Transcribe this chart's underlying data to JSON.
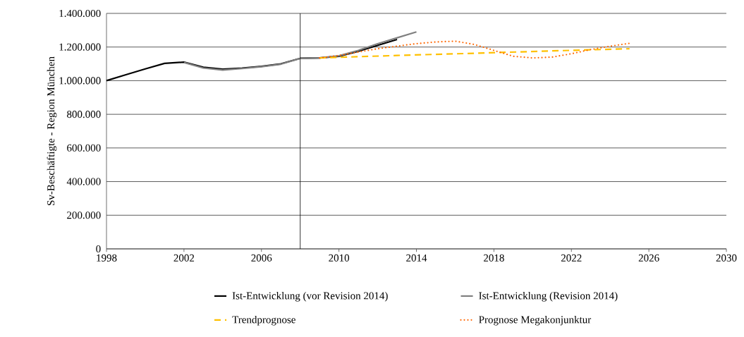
{
  "chart_data": {
    "type": "line",
    "ylabel": "Sv-Beschäftigte - Region München",
    "xlim": [
      1998,
      2030
    ],
    "xticks": [
      1998,
      2002,
      2006,
      2010,
      2014,
      2018,
      2022,
      2026,
      2030
    ],
    "ylim": [
      0,
      1400000
    ],
    "yticks": [
      0,
      {
        "value": 200000,
        "label": "200.000"
      },
      {
        "value": 400000,
        "label": "400.000"
      },
      {
        "value": 600000,
        "label": "600.000"
      },
      {
        "value": 800000,
        "label": "800.000"
      },
      {
        "value": 1000000,
        "label": "1.000.000"
      },
      {
        "value": 1200000,
        "label": "1.200.000"
      },
      {
        "value": 1400000,
        "label": "1.400.000"
      }
    ],
    "grid": "y",
    "legend": "bottom",
    "marker": "none",
    "ref_lines": [
      {
        "axis": "x",
        "value": 2008,
        "color": "#000000"
      }
    ],
    "series": [
      {
        "name": "Ist-Entwicklung (vor Revision 2014)",
        "color": "#000000",
        "line_style": "solid",
        "x": [
          1998,
          1999,
          2000,
          2001,
          2002,
          2003,
          2004,
          2005,
          2006,
          2007,
          2008,
          2009,
          2010,
          2011,
          2012,
          2013
        ],
        "values": [
          1000000,
          1035000,
          1070000,
          1103000,
          1110000,
          1080000,
          1068000,
          1075000,
          1085000,
          1100000,
          1133000,
          1135000,
          1145000,
          1175000,
          1210000,
          1245000
        ]
      },
      {
        "name": "Ist-Entwicklung (Revision 2014)",
        "color": "#808080",
        "line_style": "solid",
        "x": [
          2002,
          2003,
          2004,
          2005,
          2006,
          2007,
          2008,
          2009,
          2010,
          2011,
          2012,
          2013,
          2014
        ],
        "values": [
          1108000,
          1075000,
          1063000,
          1072000,
          1083000,
          1098000,
          1132000,
          1135000,
          1148000,
          1180000,
          1220000,
          1255000,
          1290000
        ]
      },
      {
        "name": "Trendprognose",
        "color": "#ffc000",
        "line_style": "dashed",
        "x": [
          2009,
          2013,
          2017,
          2021,
          2025
        ],
        "values": [
          1135000,
          1150000,
          1163000,
          1177000,
          1190000
        ]
      },
      {
        "name": "Prognose Megakonjunktur",
        "color": "#ff6600",
        "line_style": "dotted",
        "x": [
          2009,
          2010,
          2011,
          2012,
          2013,
          2014,
          2015,
          2016,
          2017,
          2018,
          2019,
          2020,
          2021,
          2022,
          2023,
          2024,
          2025
        ],
        "values": [
          1135000,
          1150000,
          1170000,
          1190000,
          1205000,
          1220000,
          1230000,
          1235000,
          1215000,
          1180000,
          1145000,
          1135000,
          1140000,
          1160000,
          1185000,
          1205000,
          1222000
        ]
      }
    ]
  }
}
